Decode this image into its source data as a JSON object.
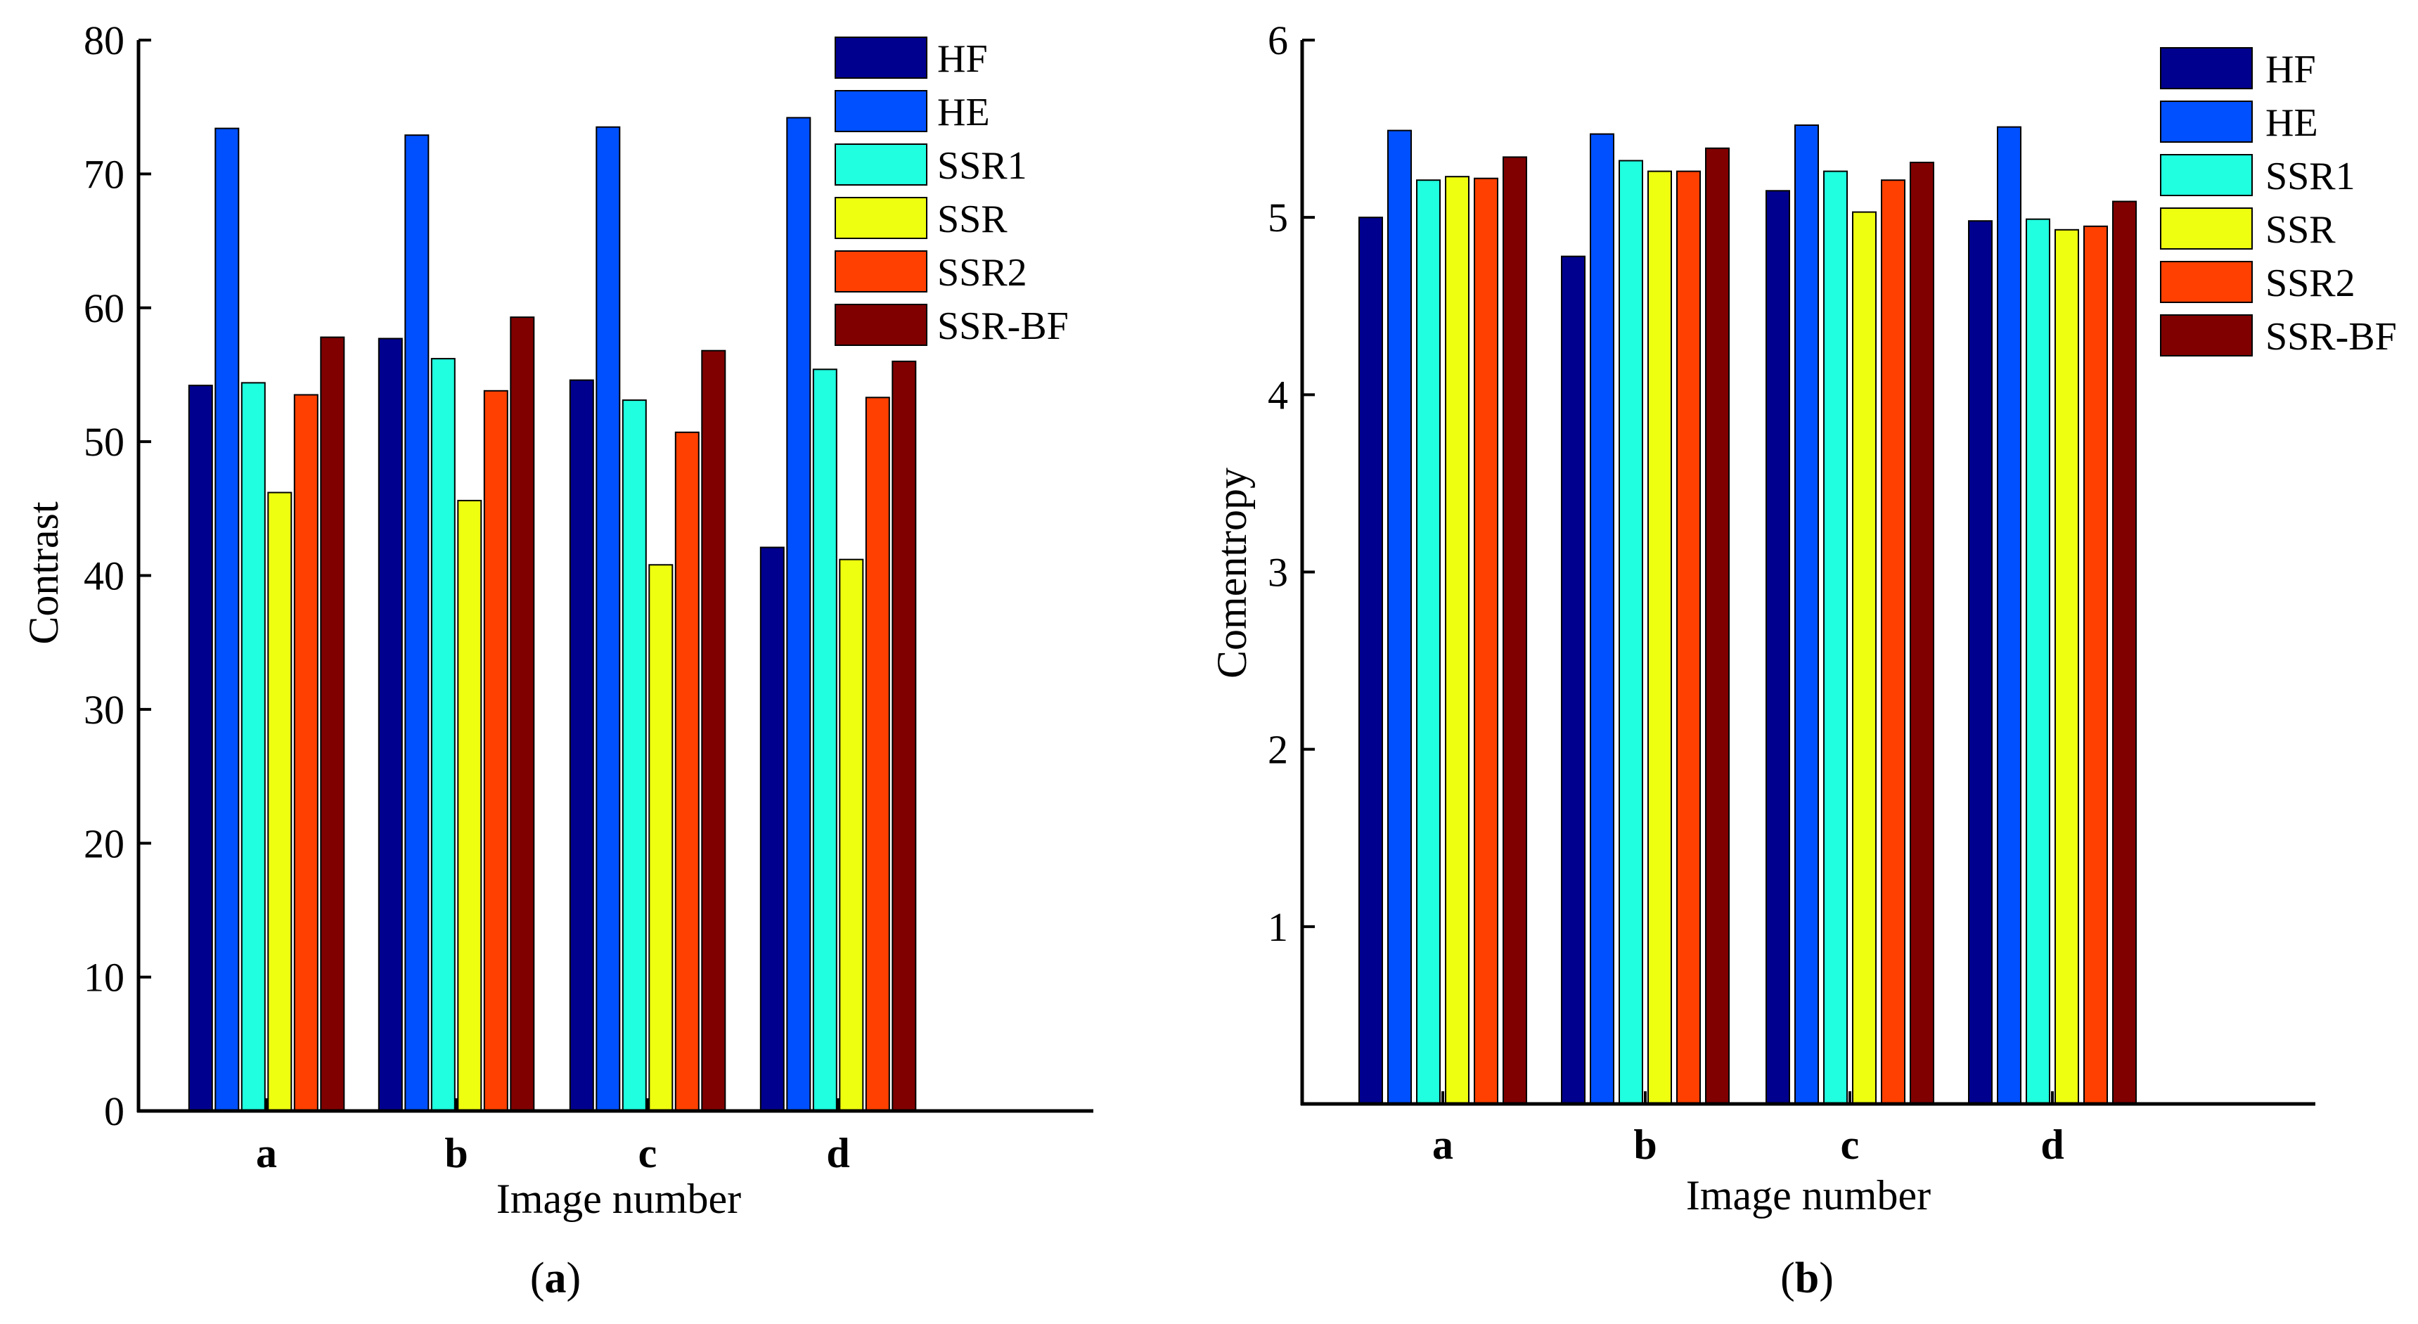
{
  "chart_data": [
    {
      "type": "bar",
      "panel_label": "a",
      "title": "",
      "xlabel": "Image number",
      "ylabel": "Contrast",
      "categories": [
        "a",
        "b",
        "c",
        "d"
      ],
      "ylim": [
        0,
        80
      ],
      "yticks": [
        "0",
        "10",
        "20",
        "30",
        "40",
        "50",
        "60",
        "70",
        "80"
      ],
      "legend_position": "top-right",
      "series": [
        {
          "name": "HF",
          "color": "#00008F",
          "values": [
            54.2,
            57.7,
            54.6,
            42.1
          ]
        },
        {
          "name": "HE",
          "color": "#0050FF",
          "values": [
            73.4,
            72.9,
            73.5,
            74.2
          ]
        },
        {
          "name": "SSR1",
          "color": "#20FFDF",
          "values": [
            54.4,
            56.2,
            53.1,
            55.4
          ]
        },
        {
          "name": "SSR",
          "color": "#EFFF10",
          "values": [
            46.2,
            45.6,
            40.8,
            41.2
          ]
        },
        {
          "name": "SSR2",
          "color": "#FF4000",
          "values": [
            53.5,
            53.8,
            50.7,
            53.3
          ]
        },
        {
          "name": "SSR-BF",
          "color": "#800000",
          "values": [
            57.8,
            59.3,
            56.8,
            56.0
          ]
        }
      ]
    },
    {
      "type": "bar",
      "panel_label": "b",
      "title": "",
      "xlabel": "Image number",
      "ylabel": "Comentropy",
      "categories": [
        "a",
        "b",
        "c",
        "d"
      ],
      "ylim": [
        0,
        6
      ],
      "yticks": [
        "1",
        "2",
        "3",
        "4",
        "5",
        "6"
      ],
      "legend_position": "top-right",
      "series": [
        {
          "name": "HF",
          "color": "#00008F",
          "values": [
            5.0,
            4.78,
            5.15,
            4.98
          ]
        },
        {
          "name": "HE",
          "color": "#0050FF",
          "values": [
            5.49,
            5.47,
            5.52,
            5.51
          ]
        },
        {
          "name": "SSR1",
          "color": "#20FFDF",
          "values": [
            5.21,
            5.32,
            5.26,
            4.99
          ]
        },
        {
          "name": "SSR",
          "color": "#EFFF10",
          "values": [
            5.23,
            5.26,
            5.03,
            4.93
          ]
        },
        {
          "name": "SSR2",
          "color": "#FF4000",
          "values": [
            5.22,
            5.26,
            5.21,
            4.95
          ]
        },
        {
          "name": "SSR-BF",
          "color": "#800000",
          "values": [
            5.34,
            5.39,
            5.31,
            5.09
          ]
        }
      ]
    }
  ]
}
